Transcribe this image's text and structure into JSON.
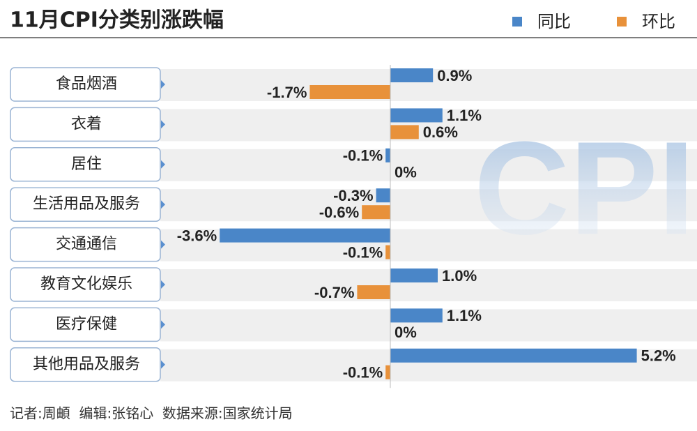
{
  "chart_data": {
    "type": "bar",
    "orientation": "horizontal",
    "title": "11月CPI分类别涨跌幅",
    "watermark": "CPI",
    "categories": [
      "食品烟酒",
      "衣着",
      "居住",
      "生活用品及服务",
      "交通通信",
      "教育文化娱乐",
      "医疗保健",
      "其他用品及服务"
    ],
    "series": [
      {
        "name": "同比",
        "color": "#4a86c8",
        "values": [
          0.9,
          1.1,
          -0.1,
          -0.3,
          -3.6,
          1.0,
          1.1,
          5.2
        ],
        "value_labels": [
          "0.9%",
          "1.1%",
          "-0.1%",
          "-0.3%",
          "-3.6%",
          "1.0%",
          "1.1%",
          "5.2%"
        ]
      },
      {
        "name": "环比",
        "color": "#e8913a",
        "values": [
          -1.7,
          0.6,
          0,
          -0.6,
          -0.1,
          -0.7,
          0,
          -0.1
        ],
        "value_labels": [
          "-1.7%",
          "0.6%",
          "0%",
          "-0.6%",
          "-0.1%",
          "-0.7%",
          "0%",
          "-0.1%"
        ]
      }
    ],
    "legend": "top-right",
    "footer": "记者:周頔  编辑:张铭心  数据来源:国家统计局"
  }
}
